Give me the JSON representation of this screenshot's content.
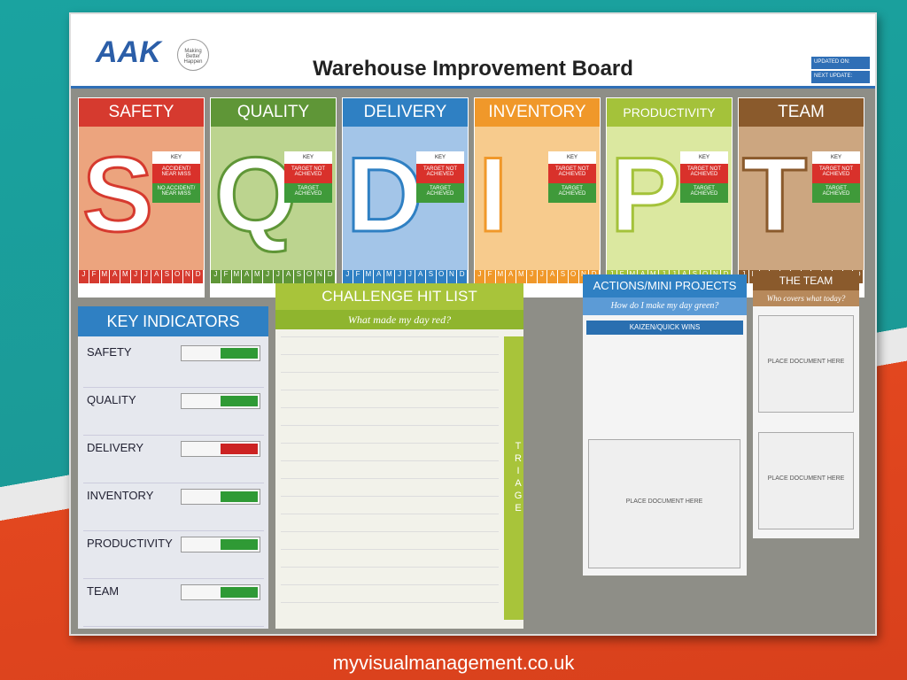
{
  "header": {
    "logo": "AAK",
    "tagline": "Making Better Happen",
    "title": "Warehouse Improvement Board",
    "updated_on": "UPDATED ON:",
    "next_update": "NEXT UPDATE:"
  },
  "months": [
    "J",
    "F",
    "M",
    "A",
    "M",
    "J",
    "J",
    "A",
    "S",
    "O",
    "N",
    "D"
  ],
  "panels": [
    {
      "title": "SAFETY",
      "letter": "S",
      "color": "#d63a2f",
      "tint": "#eca47e",
      "key_title": "KEY",
      "key": [
        {
          "label": "ACCIDENT/ NEAR MISS",
          "color": "#d9312b"
        },
        {
          "label": "NO ACCIDENT/ NEAR MISS",
          "color": "#3f9a3a"
        }
      ]
    },
    {
      "title": "QUALITY",
      "letter": "Q",
      "color": "#5f9637",
      "tint": "#bcd48f",
      "key_title": "KEY",
      "key": [
        {
          "label": "TARGET NOT ACHIEVED",
          "color": "#d9312b"
        },
        {
          "label": "TARGET ACHIEVED",
          "color": "#3f9a3a"
        }
      ]
    },
    {
      "title": "DELIVERY",
      "letter": "D",
      "color": "#2f80c3",
      "tint": "#a3c5e8",
      "key_title": "KEY",
      "key": [
        {
          "label": "TARGET NOT ACHIEVED",
          "color": "#d9312b"
        },
        {
          "label": "TARGET ACHIEVED",
          "color": "#3f9a3a"
        }
      ]
    },
    {
      "title": "INVENTORY",
      "letter": "I",
      "color": "#f0982a",
      "tint": "#f7cb8d",
      "key_title": "KEY",
      "key": [
        {
          "label": "TARGET NOT ACHIEVED",
          "color": "#d9312b"
        },
        {
          "label": "TARGET ACHIEVED",
          "color": "#3f9a3a"
        }
      ]
    },
    {
      "title": "PRODUCTIVITY",
      "letter": "P",
      "color": "#a4c23a",
      "tint": "#dbe8a0",
      "key_title": "KEY",
      "key": [
        {
          "label": "TARGET NOT ACHIEVED",
          "color": "#d9312b"
        },
        {
          "label": "TARGET ACHIEVED",
          "color": "#3f9a3a"
        }
      ]
    },
    {
      "title": "TEAM",
      "letter": "T",
      "color": "#8a5a2c",
      "tint": "#cca680",
      "key_title": "KEY",
      "key": [
        {
          "label": "TARGET NOT ACHIEVED",
          "color": "#d9312b"
        },
        {
          "label": "TARGET ACHIEVED",
          "color": "#3f9a3a"
        }
      ]
    }
  ],
  "key_indicators": {
    "title": "KEY INDICATORS",
    "items": [
      {
        "label": "SAFETY",
        "color": "#2f9a35"
      },
      {
        "label": "QUALITY",
        "color": "#2f9a35"
      },
      {
        "label": "DELIVERY",
        "color": "#cc2222"
      },
      {
        "label": "INVENTORY",
        "color": "#2f9a35"
      },
      {
        "label": "PRODUCTIVITY",
        "color": "#2f9a35"
      },
      {
        "label": "TEAM",
        "color": "#2f9a35"
      }
    ]
  },
  "challenge": {
    "title": "CHALLENGE HIT LIST",
    "subtitle": "What made my day red?",
    "side": "TRIAGE"
  },
  "actions": {
    "title": "ACTIONS/MINI PROJECTS",
    "subtitle": "How do I make my day green?",
    "section": "KAIZEN/QUICK WINS",
    "placeholder": "PLACE DOCUMENT HERE"
  },
  "team": {
    "title": "THE TEAM",
    "subtitle": "Who covers what today?",
    "placeholders": [
      "PLACE DOCUMENT HERE",
      "PLACE DOCUMENT HERE"
    ]
  },
  "wall": {
    "url": "myvisualmanagement.co.uk"
  }
}
